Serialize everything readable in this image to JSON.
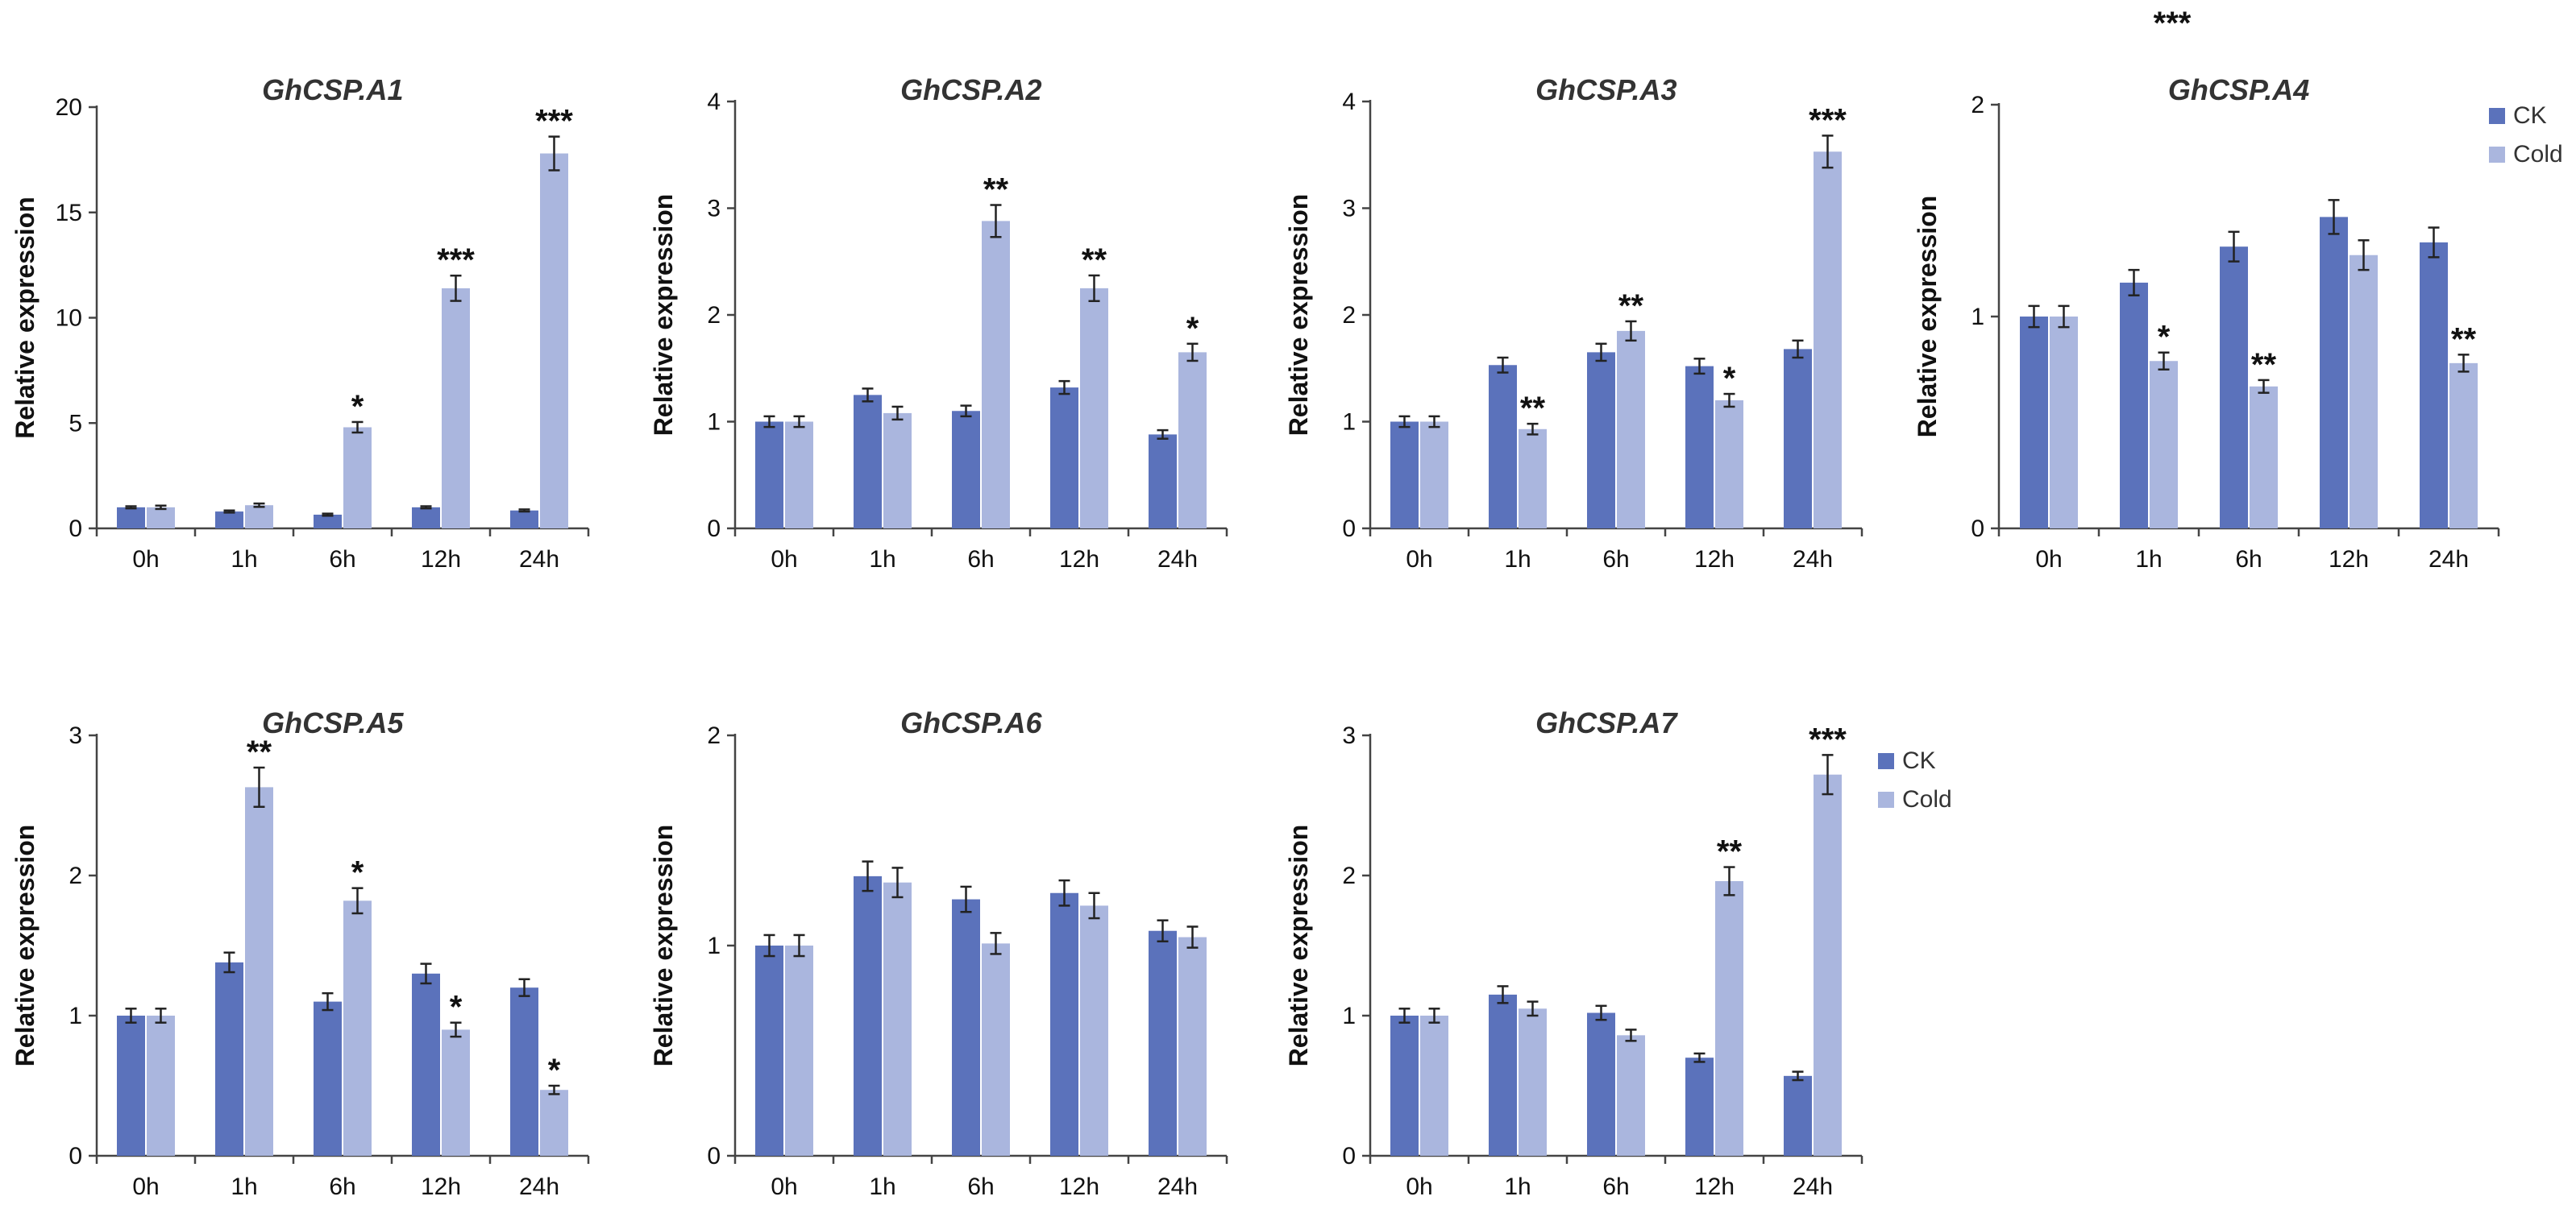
{
  "colors": {
    "ck": "#5b72bb",
    "cold": "#aab6de",
    "axis": "#444444",
    "errorbar": "#222222"
  },
  "stray_label": "***",
  "chart_data": [
    {
      "type": "bar",
      "title": "GhCSP.A1",
      "xlabel": "",
      "ylabel": "Relative expression",
      "categories": [
        "0h",
        "1h",
        "6h",
        "12h",
        "24h"
      ],
      "ylim": [
        0,
        20
      ],
      "yticks": [
        0,
        5,
        10,
        15,
        20
      ],
      "legend": "none",
      "series": [
        {
          "name": "CK",
          "values": [
            1.0,
            0.8,
            0.65,
            1.0,
            0.85
          ],
          "errors": [
            0.05,
            0.05,
            0.05,
            0.05,
            0.05
          ]
        },
        {
          "name": "Cold",
          "values": [
            1.0,
            1.1,
            4.8,
            11.4,
            17.8
          ],
          "errors": [
            0.08,
            0.08,
            0.25,
            0.6,
            0.8
          ],
          "significance": [
            "",
            "",
            "*",
            "***",
            "***"
          ]
        }
      ]
    },
    {
      "type": "bar",
      "title": "GhCSP.A2",
      "xlabel": "",
      "ylabel": "Relative expression",
      "categories": [
        "0h",
        "1h",
        "6h",
        "12h",
        "24h"
      ],
      "ylim": [
        0,
        4
      ],
      "yticks": [
        0,
        1,
        2,
        3,
        4
      ],
      "legend": "none",
      "series": [
        {
          "name": "CK",
          "values": [
            1.0,
            1.25,
            1.1,
            1.32,
            0.88
          ],
          "errors": [
            0.05,
            0.06,
            0.05,
            0.06,
            0.04
          ]
        },
        {
          "name": "Cold",
          "values": [
            1.0,
            1.08,
            2.88,
            2.25,
            1.65
          ],
          "errors": [
            0.05,
            0.06,
            0.15,
            0.12,
            0.08
          ],
          "significance": [
            "",
            "",
            "**",
            "**",
            "*"
          ]
        }
      ]
    },
    {
      "type": "bar",
      "title": "GhCSP.A3",
      "xlabel": "",
      "ylabel": "Relative expression",
      "categories": [
        "0h",
        "1h",
        "6h",
        "12h",
        "24h"
      ],
      "ylim": [
        0,
        4
      ],
      "yticks": [
        0,
        1,
        2,
        3,
        4
      ],
      "legend": "none",
      "series": [
        {
          "name": "CK",
          "values": [
            1.0,
            1.53,
            1.65,
            1.52,
            1.68
          ],
          "errors": [
            0.05,
            0.07,
            0.08,
            0.07,
            0.08
          ]
        },
        {
          "name": "Cold",
          "values": [
            1.0,
            0.93,
            1.85,
            1.2,
            3.53
          ],
          "errors": [
            0.05,
            0.05,
            0.09,
            0.06,
            0.15
          ],
          "significance": [
            "",
            "**",
            "**",
            "*",
            "***"
          ]
        }
      ]
    },
    {
      "type": "bar",
      "title": "GhCSP.A4",
      "xlabel": "",
      "ylabel": "Relative expression",
      "categories": [
        "0h",
        "1h",
        "6h",
        "12h",
        "24h"
      ],
      "ylim": [
        0,
        2
      ],
      "yticks": [
        0,
        1,
        2
      ],
      "legend": "top-right",
      "series": [
        {
          "name": "CK",
          "values": [
            1.0,
            1.16,
            1.33,
            1.47,
            1.35
          ],
          "errors": [
            0.05,
            0.06,
            0.07,
            0.08,
            0.07
          ]
        },
        {
          "name": "Cold",
          "values": [
            1.0,
            0.79,
            0.67,
            1.29,
            0.78
          ],
          "errors": [
            0.05,
            0.04,
            0.03,
            0.07,
            0.04
          ],
          "significance": [
            "",
            "*",
            "**",
            "",
            "**"
          ]
        }
      ]
    },
    {
      "type": "bar",
      "title": "GhCSP.A5",
      "xlabel": "",
      "ylabel": "Relative expression",
      "categories": [
        "0h",
        "1h",
        "6h",
        "12h",
        "24h"
      ],
      "ylim": [
        0,
        3
      ],
      "yticks": [
        0,
        1,
        2,
        3
      ],
      "legend": "none",
      "series": [
        {
          "name": "CK",
          "values": [
            1.0,
            1.38,
            1.1,
            1.3,
            1.2
          ],
          "errors": [
            0.05,
            0.07,
            0.06,
            0.07,
            0.06
          ]
        },
        {
          "name": "Cold",
          "values": [
            1.0,
            2.63,
            1.82,
            0.9,
            0.47
          ],
          "errors": [
            0.05,
            0.14,
            0.09,
            0.05,
            0.03
          ],
          "significance": [
            "",
            "**",
            "*",
            "*",
            "*"
          ]
        }
      ]
    },
    {
      "type": "bar",
      "title": "GhCSP.A6",
      "xlabel": "",
      "ylabel": "Relative expression",
      "categories": [
        "0h",
        "1h",
        "6h",
        "12h",
        "24h"
      ],
      "ylim": [
        0,
        2
      ],
      "yticks": [
        0,
        1,
        2
      ],
      "legend": "none",
      "series": [
        {
          "name": "CK",
          "values": [
            1.0,
            1.33,
            1.22,
            1.25,
            1.07
          ],
          "errors": [
            0.05,
            0.07,
            0.06,
            0.06,
            0.05
          ]
        },
        {
          "name": "Cold",
          "values": [
            1.0,
            1.3,
            1.01,
            1.19,
            1.04
          ],
          "errors": [
            0.05,
            0.07,
            0.05,
            0.06,
            0.05
          ],
          "significance": [
            "",
            "",
            "",
            "",
            ""
          ]
        }
      ]
    },
    {
      "type": "bar",
      "title": "GhCSP.A7",
      "xlabel": "",
      "ylabel": "Relative expression",
      "categories": [
        "0h",
        "1h",
        "6h",
        "12h",
        "24h"
      ],
      "ylim": [
        0,
        3
      ],
      "yticks": [
        0,
        1,
        2,
        3
      ],
      "legend": "right",
      "series": [
        {
          "name": "CK",
          "values": [
            1.0,
            1.15,
            1.02,
            0.7,
            0.57
          ],
          "errors": [
            0.05,
            0.06,
            0.05,
            0.03,
            0.03
          ]
        },
        {
          "name": "Cold",
          "values": [
            1.0,
            1.05,
            0.86,
            1.96,
            2.72
          ],
          "errors": [
            0.05,
            0.05,
            0.04,
            0.1,
            0.14
          ],
          "significance": [
            "",
            "",
            "",
            "**",
            "***"
          ]
        }
      ]
    }
  ]
}
